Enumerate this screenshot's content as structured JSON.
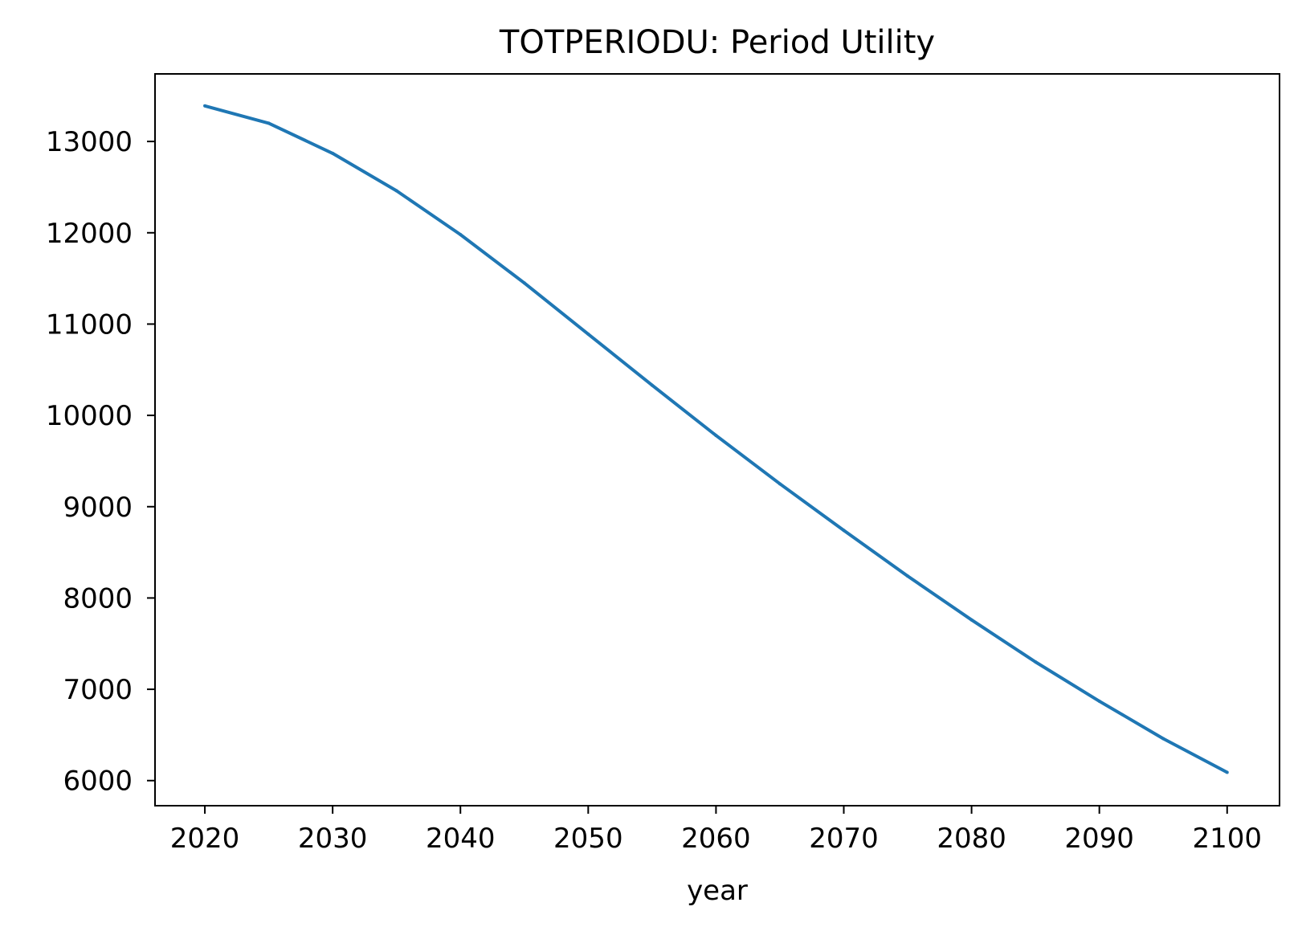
{
  "chart_data": {
    "type": "line",
    "title": "TOTPERIODU: Period Utility",
    "xlabel": "year",
    "ylabel": "",
    "xlim": [
      2016.1,
      2104.1
    ],
    "ylim": [
      5725,
      13740
    ],
    "xticks": [
      2020,
      2030,
      2040,
      2050,
      2060,
      2070,
      2080,
      2090,
      2100
    ],
    "yticks": [
      6000,
      7000,
      8000,
      9000,
      10000,
      11000,
      12000,
      13000
    ],
    "grid": false,
    "legend": "none",
    "series": [
      {
        "color": "#1f77b4",
        "x": [
          2020,
          2025,
          2030,
          2035,
          2040,
          2045,
          2050,
          2055,
          2060,
          2065,
          2070,
          2075,
          2080,
          2085,
          2090,
          2095,
          2100
        ],
        "y": [
          13390,
          13200,
          12870,
          12460,
          11980,
          11450,
          10890,
          10330,
          9780,
          9250,
          8740,
          8240,
          7760,
          7300,
          6870,
          6460,
          6090
        ]
      }
    ]
  }
}
